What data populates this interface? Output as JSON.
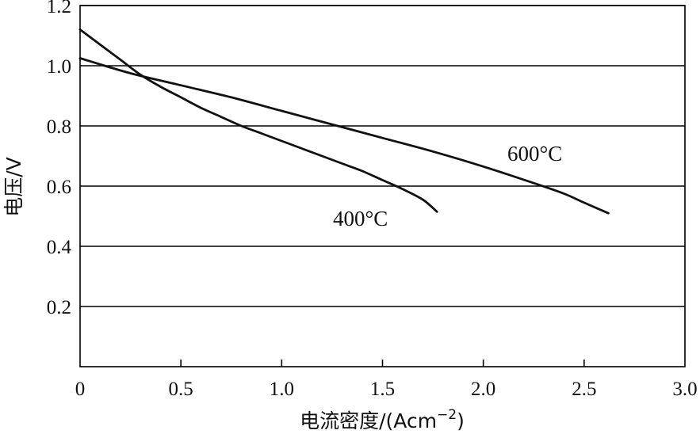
{
  "chart_data": {
    "type": "line",
    "title": "",
    "xlabel": "电流密度/(Acm",
    "xlabel_sup": "−2",
    "xlabel_tail": ")",
    "ylabel": "电压/V",
    "xlim": [
      0,
      3.0
    ],
    "ylim": [
      0,
      1.2
    ],
    "x_ticks": [
      0,
      0.5,
      1.0,
      1.5,
      2.0,
      2.5,
      3.0
    ],
    "x_tick_labels": [
      "0",
      "0.5",
      "1.0",
      "1.5",
      "2.0",
      "2.5",
      "3.0"
    ],
    "y_ticks": [
      0.2,
      0.4,
      0.6,
      0.8,
      1.0,
      1.2
    ],
    "y_tick_labels": [
      "0.2",
      "0.4",
      "0.6",
      "0.8",
      "1.0",
      "1.2"
    ],
    "grid": "horizontal",
    "series": [
      {
        "name": "400°C",
        "x": [
          0,
          0.1,
          0.2,
          0.3,
          0.4,
          0.5,
          0.6,
          0.7,
          0.8,
          0.9,
          1.0,
          1.1,
          1.2,
          1.3,
          1.4,
          1.5,
          1.6,
          1.7,
          1.77
        ],
        "y": [
          1.12,
          1.07,
          1.02,
          0.97,
          0.93,
          0.895,
          0.86,
          0.83,
          0.8,
          0.775,
          0.75,
          0.725,
          0.7,
          0.675,
          0.65,
          0.62,
          0.59,
          0.555,
          0.515
        ]
      },
      {
        "name": "600°C",
        "x": [
          0,
          0.25,
          0.5,
          0.75,
          1.0,
          1.25,
          1.5,
          1.75,
          2.0,
          2.25,
          2.4,
          2.5,
          2.62
        ],
        "y": [
          1.025,
          0.975,
          0.935,
          0.895,
          0.85,
          0.805,
          0.76,
          0.715,
          0.665,
          0.61,
          0.575,
          0.545,
          0.51
        ]
      }
    ]
  }
}
